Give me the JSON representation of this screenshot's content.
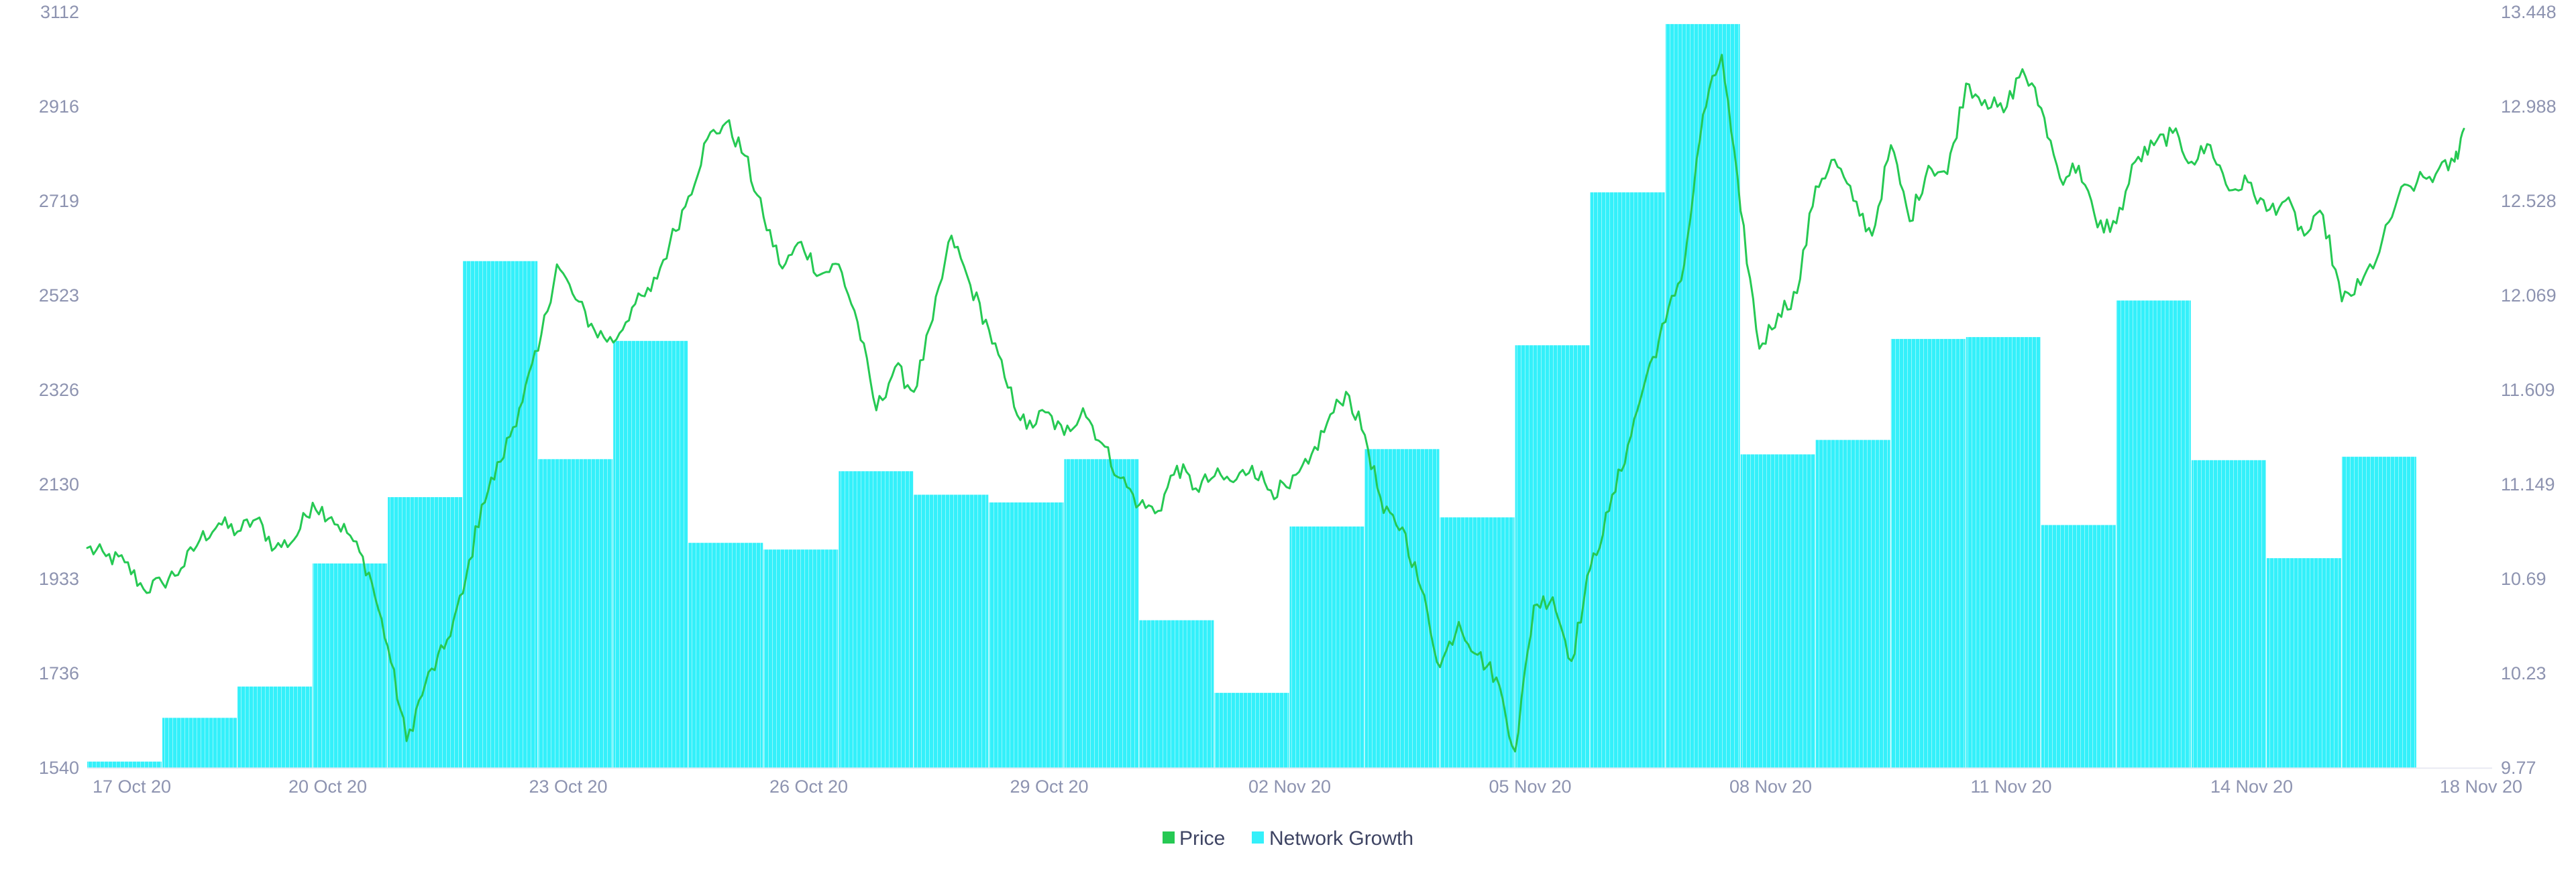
{
  "chart_data": {
    "type": "bar",
    "title": "",
    "xlabel": "",
    "ylabel": "",
    "x_ticks": [
      "17 Oct 20",
      "20 Oct 20",
      "23 Oct 20",
      "26 Oct 20",
      "29 Oct 20",
      "02 Nov 20",
      "05 Nov 20",
      "08 Nov 20",
      "11 Nov 20",
      "14 Nov 20",
      "18 Nov 20"
    ],
    "x_range": [
      "2020-10-17",
      "2020-11-18"
    ],
    "y_left": {
      "ticks": [
        "1540",
        "1736",
        "1933",
        "2130",
        "2326",
        "2523",
        "2719",
        "2916",
        "3112"
      ],
      "range": [
        1540,
        3112
      ]
    },
    "y_right": {
      "ticks": [
        "9.77",
        "10.23",
        "10.69",
        "11.149",
        "11.609",
        "12.069",
        "12.528",
        "12.988",
        "13.448"
      ],
      "range": [
        9.77,
        13.448
      ]
    },
    "grid": "off",
    "legend_position": "bottom-center",
    "colors": {
      "price": "#26c953",
      "network_growth": "#34f0fa",
      "axis_text": "#8d93b0"
    },
    "series": [
      {
        "name": "Network Growth",
        "type": "bar",
        "axis": "left",
        "data": [
          {
            "start": "2020-10-17",
            "end": "2020-10-18",
            "value": 1553
          },
          {
            "start": "2020-10-18",
            "end": "2020-10-19",
            "value": 1644
          },
          {
            "start": "2020-10-19",
            "end": "2020-10-20",
            "value": 1709
          },
          {
            "start": "2020-10-20",
            "end": "2020-10-21",
            "value": 1965
          },
          {
            "start": "2020-10-21",
            "end": "2020-10-22",
            "value": 2103
          },
          {
            "start": "2020-10-22",
            "end": "2020-10-23",
            "value": 2594
          },
          {
            "start": "2020-10-23",
            "end": "2020-10-24",
            "value": 2182
          },
          {
            "start": "2020-10-24",
            "end": "2020-10-25",
            "value": 2428
          },
          {
            "start": "2020-10-25",
            "end": "2020-10-26",
            "value": 2008
          },
          {
            "start": "2020-10-26",
            "end": "2020-10-27",
            "value": 1994
          },
          {
            "start": "2020-10-27",
            "end": "2020-10-28",
            "value": 2157
          },
          {
            "start": "2020-10-28",
            "end": "2020-10-29",
            "value": 2108
          },
          {
            "start": "2020-10-29",
            "end": "2020-10-30",
            "value": 2092
          },
          {
            "start": "2020-10-30",
            "end": "2020-10-31",
            "value": 2182
          },
          {
            "start": "2020-10-31",
            "end": "2020-11-01",
            "value": 1847
          },
          {
            "start": "2020-11-01",
            "end": "2020-11-02",
            "value": 1696
          },
          {
            "start": "2020-11-02",
            "end": "2020-11-03",
            "value": 2042
          },
          {
            "start": "2020-11-03",
            "end": "2020-11-04",
            "value": 2203
          },
          {
            "start": "2020-11-04",
            "end": "2020-11-05",
            "value": 2061
          },
          {
            "start": "2020-11-05",
            "end": "2020-11-06",
            "value": 2419
          },
          {
            "start": "2020-11-06",
            "end": "2020-11-07",
            "value": 2737
          },
          {
            "start": "2020-11-07",
            "end": "2020-11-08",
            "value": 3087
          },
          {
            "start": "2020-11-08",
            "end": "2020-11-09",
            "value": 2192
          },
          {
            "start": "2020-11-09",
            "end": "2020-11-10",
            "value": 2222
          },
          {
            "start": "2020-11-10",
            "end": "2020-11-11",
            "value": 2432
          },
          {
            "start": "2020-11-11",
            "end": "2020-11-12",
            "value": 2436
          },
          {
            "start": "2020-11-12",
            "end": "2020-11-13",
            "value": 2045
          },
          {
            "start": "2020-11-13",
            "end": "2020-11-14",
            "value": 2512
          },
          {
            "start": "2020-11-14",
            "end": "2020-11-15",
            "value": 2180
          },
          {
            "start": "2020-11-15",
            "end": "2020-11-16",
            "value": 1976
          },
          {
            "start": "2020-11-16",
            "end": "2020-11-17",
            "value": 2187
          }
        ]
      },
      {
        "name": "Price",
        "type": "line",
        "axis": "right",
        "points": [
          [
            "2020-10-17T00:00",
            10.84
          ],
          [
            "2020-10-17T06:00",
            10.8
          ],
          [
            "2020-10-17T12:00",
            10.77
          ],
          [
            "2020-10-17T18:00",
            10.64
          ],
          [
            "2020-10-18T00:00",
            10.67
          ],
          [
            "2020-10-18T06:00",
            10.74
          ],
          [
            "2020-10-18T12:00",
            10.88
          ],
          [
            "2020-10-18T18:00",
            10.96
          ],
          [
            "2020-10-19T00:00",
            10.92
          ],
          [
            "2020-10-19T06:00",
            10.98
          ],
          [
            "2020-10-19T12:00",
            10.84
          ],
          [
            "2020-10-19T18:00",
            10.88
          ],
          [
            "2020-10-20T00:00",
            11.06
          ],
          [
            "2020-10-20T06:00",
            10.99
          ],
          [
            "2020-10-20T12:00",
            10.9
          ],
          [
            "2020-10-20T18:00",
            10.72
          ],
          [
            "2020-10-21T00:00",
            10.36
          ],
          [
            "2020-10-21T06:00",
            9.9
          ],
          [
            "2020-10-21T12:00",
            10.18
          ],
          [
            "2020-10-21T18:00",
            10.35
          ],
          [
            "2020-10-22T00:00",
            10.62
          ],
          [
            "2020-10-22T06:00",
            11.05
          ],
          [
            "2020-10-22T12:00",
            11.26
          ],
          [
            "2020-10-22T18:00",
            11.52
          ],
          [
            "2020-10-23T00:00",
            11.8
          ],
          [
            "2020-10-23T06:00",
            12.22
          ],
          [
            "2020-10-23T12:00",
            12.05
          ],
          [
            "2020-10-23T18:00",
            11.9
          ],
          [
            "2020-10-24T00:00",
            11.84
          ],
          [
            "2020-10-24T06:00",
            12.01
          ],
          [
            "2020-10-24T12:00",
            12.09
          ],
          [
            "2020-10-24T18:00",
            12.32
          ],
          [
            "2020-10-25T00:00",
            12.55
          ],
          [
            "2020-10-25T06:00",
            12.83
          ],
          [
            "2020-10-25T12:00",
            12.91
          ],
          [
            "2020-10-25T18:00",
            12.75
          ],
          [
            "2020-10-26T00:00",
            12.45
          ],
          [
            "2020-10-26T06:00",
            12.2
          ],
          [
            "2020-10-26T12:00",
            12.33
          ],
          [
            "2020-10-26T18:00",
            12.17
          ],
          [
            "2020-10-27T00:00",
            12.22
          ],
          [
            "2020-10-27T06:00",
            11.94
          ],
          [
            "2020-10-27T12:00",
            11.51
          ],
          [
            "2020-10-27T18:00",
            11.72
          ],
          [
            "2020-10-28T00:00",
            11.6
          ],
          [
            "2020-10-28T06:00",
            11.95
          ],
          [
            "2020-10-28T12:00",
            12.36
          ],
          [
            "2020-10-28T18:00",
            12.12
          ],
          [
            "2020-10-29T00:00",
            11.9
          ],
          [
            "2020-10-29T06:00",
            11.62
          ],
          [
            "2020-10-29T12:00",
            11.42
          ],
          [
            "2020-10-29T18:00",
            11.5
          ],
          [
            "2020-10-30T00:00",
            11.39
          ],
          [
            "2020-10-30T06:00",
            11.52
          ],
          [
            "2020-10-30T12:00",
            11.35
          ],
          [
            "2020-10-30T18:00",
            11.18
          ],
          [
            "2020-10-31T00:00",
            11.05
          ],
          [
            "2020-10-31T06:00",
            11.02
          ],
          [
            "2020-10-31T12:00",
            11.24
          ],
          [
            "2020-10-31T18:00",
            11.13
          ],
          [
            "2020-11-01T00:00",
            11.19
          ],
          [
            "2020-11-01T06:00",
            11.16
          ],
          [
            "2020-11-01T12:00",
            11.24
          ],
          [
            "2020-11-01T18:00",
            11.12
          ],
          [
            "2020-11-02T00:00",
            11.13
          ],
          [
            "2020-11-02T06:00",
            11.25
          ],
          [
            "2020-11-02T12:00",
            11.45
          ],
          [
            "2020-11-02T18:00",
            11.6
          ],
          [
            "2020-11-03T00:00",
            11.39
          ],
          [
            "2020-11-03T06:00",
            11.01
          ],
          [
            "2020-11-03T12:00",
            10.94
          ],
          [
            "2020-11-03T18:00",
            10.64
          ],
          [
            "2020-11-04T00:00",
            10.26
          ],
          [
            "2020-11-04T06:00",
            10.48
          ],
          [
            "2020-11-04T12:00",
            10.32
          ],
          [
            "2020-11-04T18:00",
            10.21
          ],
          [
            "2020-11-05T00:00",
            9.85
          ],
          [
            "2020-11-05T06:00",
            10.56
          ],
          [
            "2020-11-05T12:00",
            10.6
          ],
          [
            "2020-11-05T18:00",
            10.29
          ],
          [
            "2020-11-06T00:00",
            10.74
          ],
          [
            "2020-11-06T06:00",
            11.02
          ],
          [
            "2020-11-06T12:00",
            11.34
          ],
          [
            "2020-11-06T18:00",
            11.68
          ],
          [
            "2020-11-07T00:00",
            11.94
          ],
          [
            "2020-11-07T06:00",
            12.22
          ],
          [
            "2020-11-07T12:00",
            12.95
          ],
          [
            "2020-11-07T18:00",
            13.24
          ],
          [
            "2020-11-08T00:00",
            12.48
          ],
          [
            "2020-11-08T06:00",
            11.81
          ],
          [
            "2020-11-08T12:00",
            11.98
          ],
          [
            "2020-11-08T18:00",
            12.08
          ],
          [
            "2020-11-09T00:00",
            12.6
          ],
          [
            "2020-11-09T06:00",
            12.73
          ],
          [
            "2020-11-09T12:00",
            12.53
          ],
          [
            "2020-11-09T18:00",
            12.36
          ],
          [
            "2020-11-10T00:00",
            12.8
          ],
          [
            "2020-11-10T06:00",
            12.43
          ],
          [
            "2020-11-10T12:00",
            12.7
          ],
          [
            "2020-11-10T18:00",
            12.66
          ],
          [
            "2020-11-11T00:00",
            13.1
          ],
          [
            "2020-11-11T06:00",
            13.02
          ],
          [
            "2020-11-11T12:00",
            12.96
          ],
          [
            "2020-11-11T18:00",
            13.17
          ],
          [
            "2020-11-12T00:00",
            12.98
          ],
          [
            "2020-11-12T06:00",
            12.64
          ],
          [
            "2020-11-12T12:00",
            12.7
          ],
          [
            "2020-11-12T18:00",
            12.4
          ],
          [
            "2020-11-13T00:00",
            12.42
          ],
          [
            "2020-11-13T06:00",
            12.72
          ],
          [
            "2020-11-13T12:00",
            12.8
          ],
          [
            "2020-11-13T18:00",
            12.86
          ],
          [
            "2020-11-14T00:00",
            12.72
          ],
          [
            "2020-11-14T06:00",
            12.8
          ],
          [
            "2020-11-14T12:00",
            12.58
          ],
          [
            "2020-11-14T18:00",
            12.62
          ],
          [
            "2020-11-15T00:00",
            12.48
          ],
          [
            "2020-11-15T06:00",
            12.53
          ],
          [
            "2020-11-15T12:00",
            12.36
          ],
          [
            "2020-11-15T18:00",
            12.46
          ],
          [
            "2020-11-16T00:00",
            12.04
          ],
          [
            "2020-11-16T06:00",
            12.12
          ],
          [
            "2020-11-16T12:00",
            12.28
          ],
          [
            "2020-11-16T18:00",
            12.55
          ],
          [
            "2020-11-17T00:00",
            12.62
          ],
          [
            "2020-11-17T06:00",
            12.66
          ],
          [
            "2020-11-17T12:00",
            12.72
          ],
          [
            "2020-11-17T15:00",
            12.88
          ]
        ]
      }
    ]
  }
}
